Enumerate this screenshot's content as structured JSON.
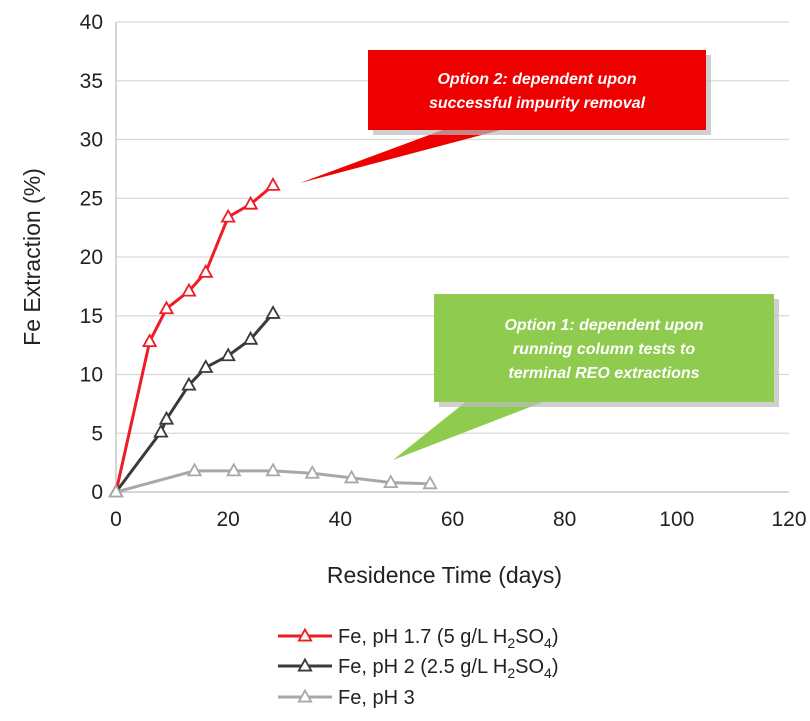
{
  "chart_data": {
    "type": "line",
    "xlabel": "Residence Time (days)",
    "ylabel": "Fe Extraction (%)",
    "xlim": [
      0,
      120
    ],
    "ylim": [
      0,
      40
    ],
    "x_ticks": [
      0,
      20,
      40,
      60,
      80,
      100,
      120
    ],
    "y_ticks": [
      0,
      5,
      10,
      15,
      20,
      25,
      30,
      35,
      40
    ],
    "grid": "horizontal",
    "legend_position": "bottom",
    "series": [
      {
        "legend": {
          "prefix": "Fe, pH 1.7 (5 g/L H",
          "sub1": "2",
          "mid": "SO",
          "sub2": "4",
          "suffix": ")"
        },
        "color": "#ee1c25",
        "marker": "open-triangle",
        "points": [
          [
            0,
            0
          ],
          [
            6,
            12.8
          ],
          [
            9,
            15.6
          ],
          [
            13,
            17.1
          ],
          [
            16,
            18.7
          ],
          [
            20,
            23.4
          ],
          [
            24,
            24.5
          ],
          [
            28,
            26.1
          ]
        ]
      },
      {
        "legend": {
          "prefix": "Fe, pH 2 (2.5 g/L H",
          "sub1": "2",
          "mid": "SO",
          "sub2": "4",
          "suffix": ")"
        },
        "color": "#3a3a3a",
        "marker": "open-triangle",
        "points": [
          [
            0,
            0
          ],
          [
            8,
            5.1
          ],
          [
            9,
            6.2
          ],
          [
            13,
            9.1
          ],
          [
            16,
            10.6
          ],
          [
            20,
            11.6
          ],
          [
            24,
            13.0
          ],
          [
            28,
            15.2
          ]
        ]
      },
      {
        "legend": {
          "prefix": "Fe, pH 3",
          "sub1": "",
          "mid": "",
          "sub2": "",
          "suffix": ""
        },
        "color": "#a8a8a8",
        "marker": "open-triangle",
        "points": [
          [
            0,
            0
          ],
          [
            14,
            1.8
          ],
          [
            21,
            1.8
          ],
          [
            28,
            1.8
          ],
          [
            35,
            1.6
          ],
          [
            42,
            1.2
          ],
          [
            49,
            0.8
          ],
          [
            56,
            0.7
          ]
        ]
      }
    ],
    "annotations": [
      {
        "lines": [
          "Option 2: dependent upon",
          "successful impurity removal"
        ],
        "color": "#ee0000"
      },
      {
        "lines": [
          "Option 1: dependent upon",
          "running column tests to",
          "terminal REO extractions"
        ],
        "color": "#8fcb4f"
      }
    ]
  }
}
